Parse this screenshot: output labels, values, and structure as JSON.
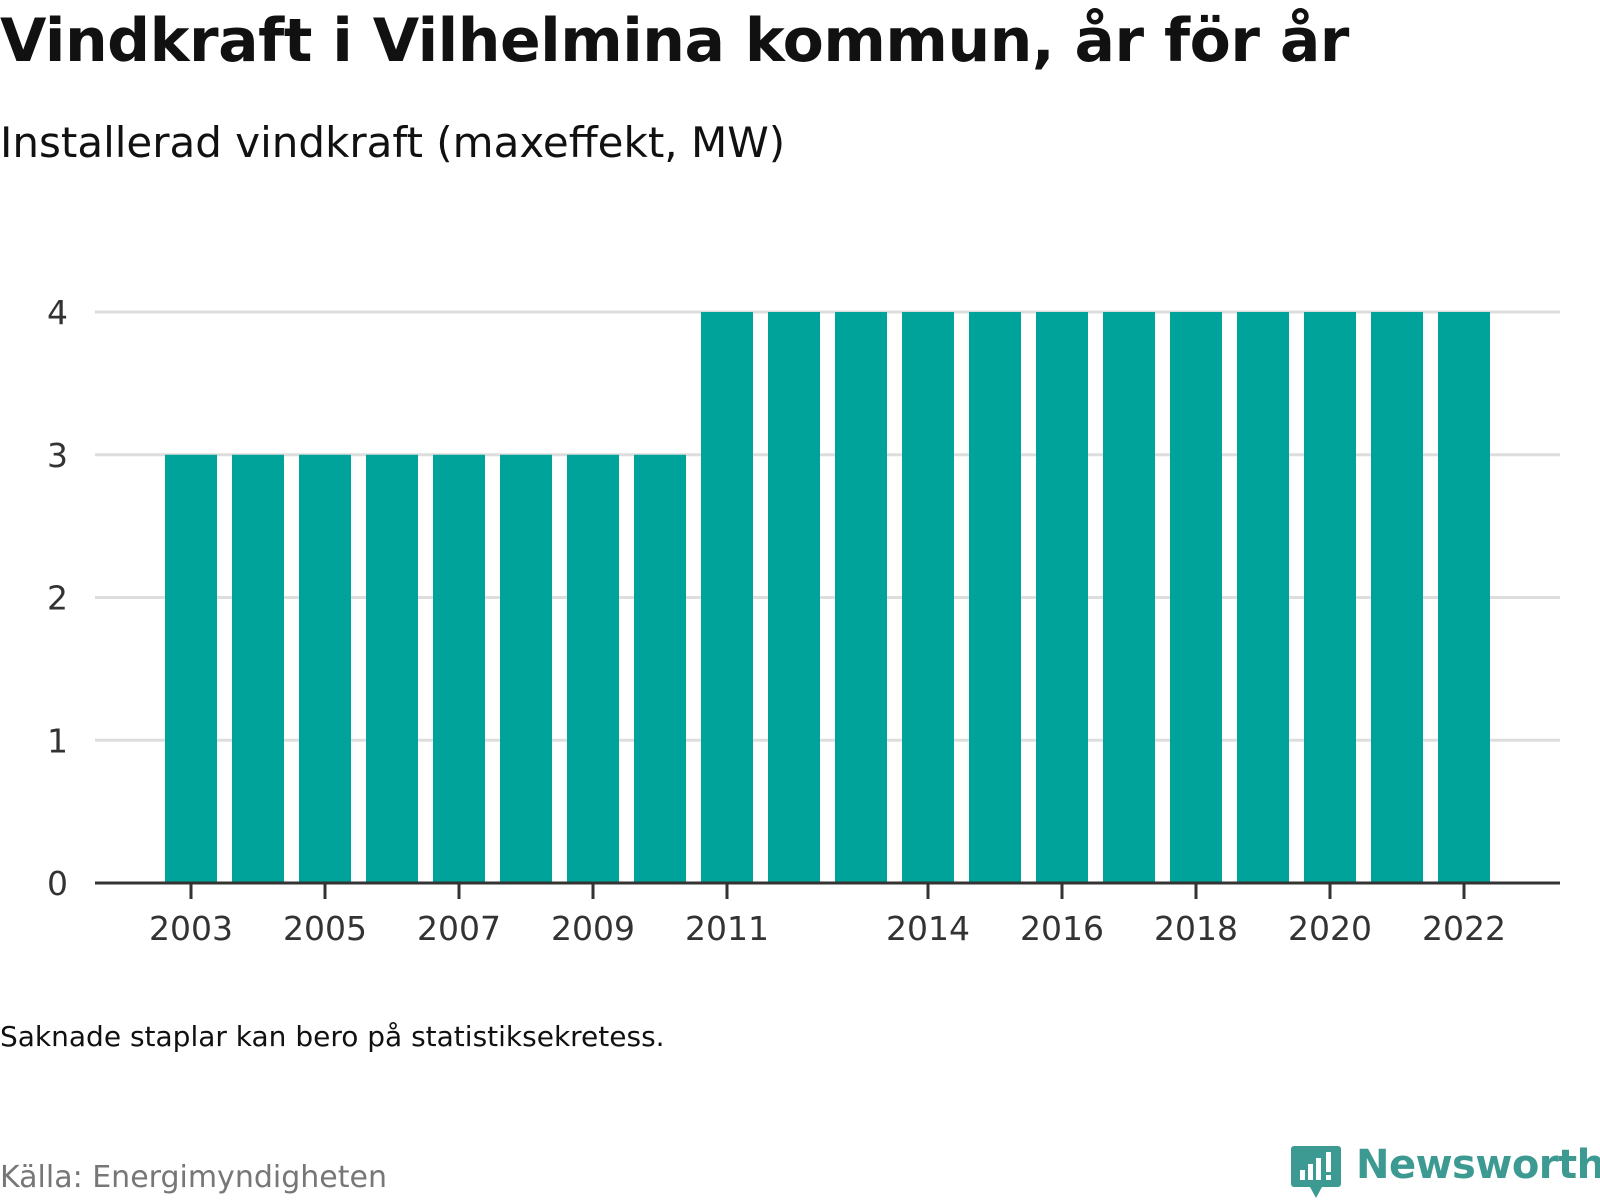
{
  "header": {
    "title": "Vindkraft i Vilhelmina kommun, år för år",
    "subtitle": "Installerad vindkraft (maxeffekt, MW)"
  },
  "footer": {
    "note": "Saknade staplar kan bero på statistiksekretess.",
    "source": "Källa: Energimyndigheten",
    "brand": "Newsworthy"
  },
  "colors": {
    "bar": "#00a399",
    "grid": "#dddddd",
    "axis": "#333333",
    "brand": "#3d9a92"
  },
  "chart_data": {
    "type": "bar",
    "title": "Vindkraft i Vilhelmina kommun, år för år",
    "subtitle": "Installerad vindkraft (maxeffekt, MW)",
    "xlabel": "",
    "ylabel": "",
    "categories": [
      "2003",
      "2004",
      "2005",
      "2006",
      "2007",
      "2008",
      "2009",
      "2010",
      "2011",
      "2012",
      "2013",
      "2014",
      "2015",
      "2016",
      "2017",
      "2018",
      "2019",
      "2020",
      "2021",
      "2022"
    ],
    "values": [
      3,
      3,
      3,
      3,
      3,
      3,
      3,
      3,
      4,
      4,
      4,
      4,
      4,
      4,
      4,
      4,
      4,
      4,
      4,
      4
    ],
    "x_tick_labels": [
      "2003",
      "2005",
      "2007",
      "2009",
      "2011",
      "2014",
      "2016",
      "2018",
      "2020",
      "2022"
    ],
    "y_ticks": [
      0,
      1,
      2,
      3,
      4
    ],
    "ylim": [
      0,
      4
    ],
    "grid": true,
    "legend": "none"
  }
}
